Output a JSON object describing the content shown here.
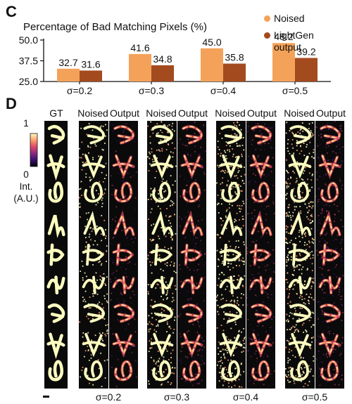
{
  "panel_c_letter": "C",
  "panel_d_letter": "D",
  "colors": {
    "noised": "#f4a259",
    "output": "#a44a1f",
    "image_bg": "#0a0a0a",
    "colormap": [
      "#000004",
      "#3b0f70",
      "#8c2981",
      "#de4968",
      "#fe9f6d",
      "#fcfdbf"
    ]
  },
  "chart_data": {
    "type": "bar",
    "title": "Percentage of Bad Matching Pixels (%)",
    "categories": [
      "σ=0.2",
      "σ=0.3",
      "σ=0.4",
      "σ=0.5"
    ],
    "series": [
      {
        "name": "Noised",
        "values": [
          32.7,
          41.6,
          45.0,
          48.2
        ],
        "labels": [
          "32.7",
          "41.6",
          "45.0",
          "48.2"
        ]
      },
      {
        "name": "LightGen output",
        "values": [
          31.6,
          34.8,
          35.8,
          39.2
        ],
        "labels": [
          "31.6",
          "34.8",
          "35.8",
          "39.2"
        ]
      }
    ],
    "ylim": [
      25.0,
      50.0
    ],
    "yticks": [
      "25.0",
      "37.5",
      "50.0"
    ],
    "legend": [
      "Noised",
      "LightGen output"
    ],
    "legend_position": "top-right"
  },
  "legend_items": [
    {
      "lines": [
        "Noised"
      ],
      "color": "#f4a259"
    },
    {
      "lines": [
        "LightGen",
        "output"
      ],
      "color": "#a44a1f"
    }
  ],
  "panel_d": {
    "gt_label": "GT",
    "col_noised": "Noised",
    "col_output": "Output",
    "sigmas": [
      "σ=0.2",
      "σ=0.3",
      "σ=0.4",
      "σ=0.5"
    ],
    "colorbar_max": "1",
    "colorbar_min": "0",
    "colorbar_unit_1": "Int.",
    "colorbar_unit_2": "(A.U.)"
  }
}
